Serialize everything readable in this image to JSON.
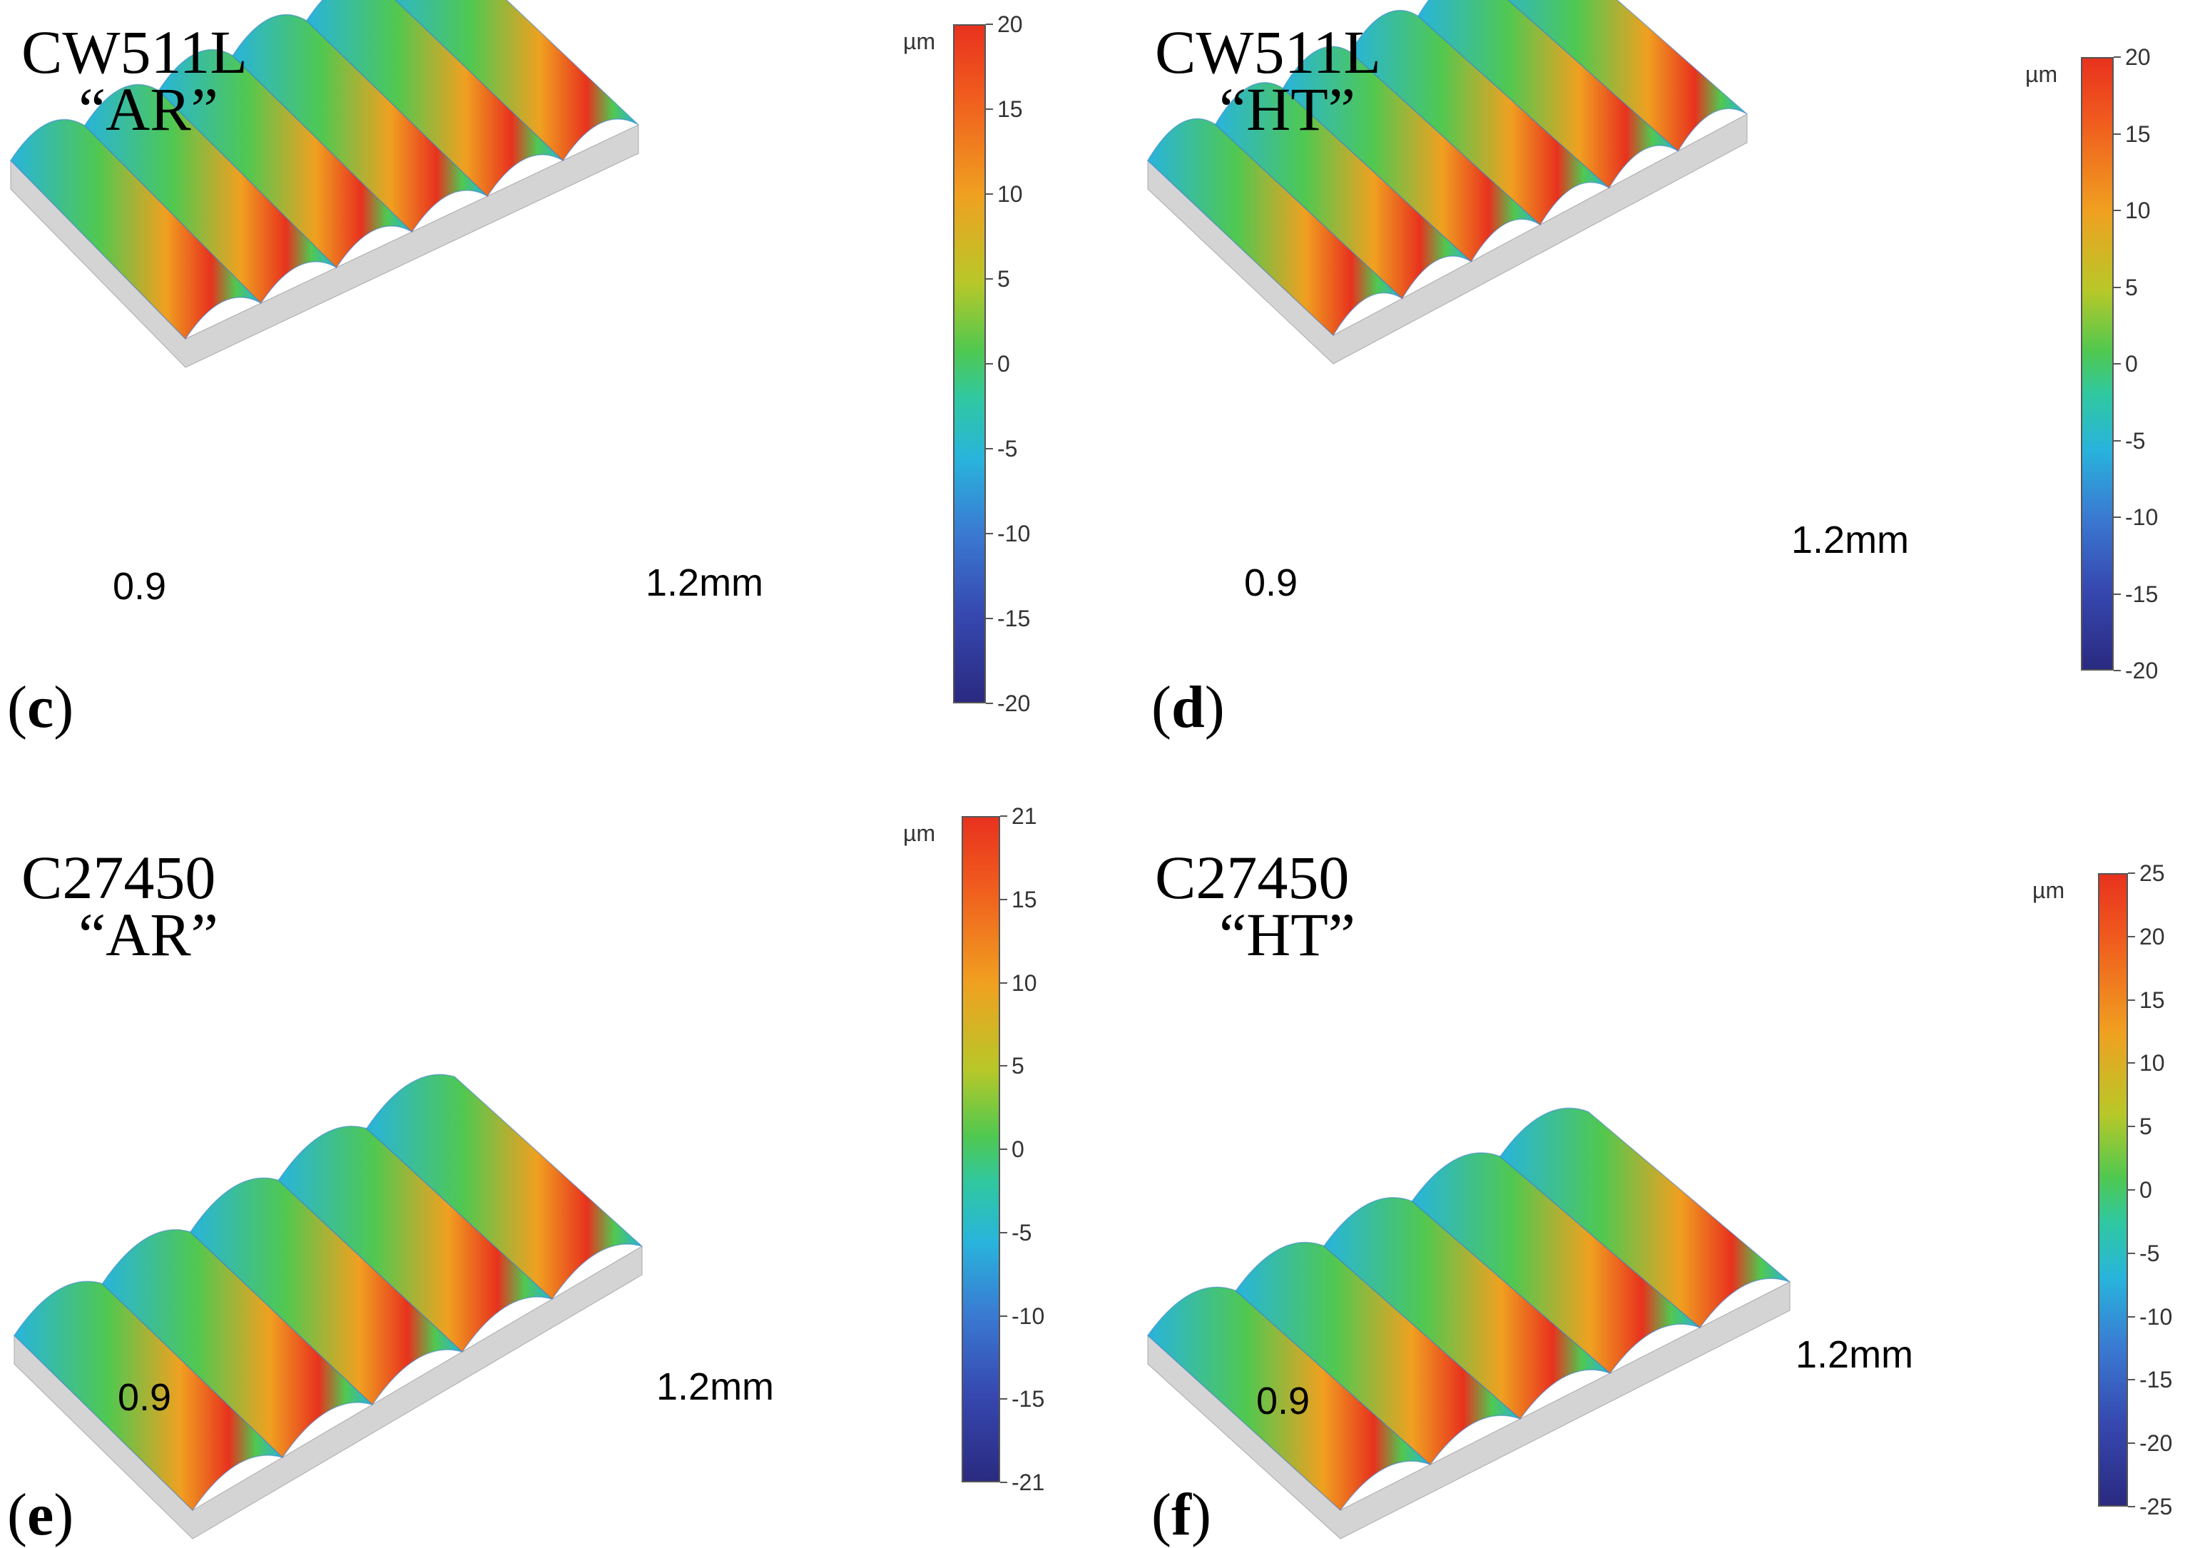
{
  "panels": [
    {
      "id": "c",
      "material": "CW511L",
      "condition": "“AR”",
      "letter": "c",
      "axis_x": "0.9",
      "axis_y": "1.2mm",
      "colorbar": {
        "unit": "µm",
        "ticks": [
          "20",
          "15",
          "10",
          "5",
          "0",
          "-5",
          "-10",
          "-15",
          "-20"
        ]
      }
    },
    {
      "id": "d",
      "material": "CW511L",
      "condition": "“HT”",
      "letter": "d",
      "axis_x": "0.9",
      "axis_y": "1.2mm",
      "colorbar": {
        "unit": "µm",
        "ticks": [
          "20",
          "15",
          "10",
          "5",
          "0",
          "-5",
          "-10",
          "-15",
          "-20"
        ]
      }
    },
    {
      "id": "e",
      "material": "C27450",
      "condition": "“AR”",
      "letter": "e",
      "axis_x": "0.9",
      "axis_y": "1.2mm",
      "colorbar": {
        "unit": "µm",
        "ticks": [
          "21",
          "15",
          "10",
          "5",
          "0",
          "-5",
          "-10",
          "-15",
          "-21"
        ]
      }
    },
    {
      "id": "f",
      "material": "C27450",
      "condition": "“HT”",
      "letter": "f",
      "axis_x": "0.9",
      "axis_y": "1.2mm",
      "colorbar": {
        "unit": "µm",
        "ticks": [
          "25",
          "20",
          "15",
          "10",
          "5",
          "0",
          "-5",
          "-10",
          "-15",
          "-20",
          "-25"
        ]
      }
    }
  ],
  "colors": {
    "high": "#e8321e",
    "mid_high": "#f0a020",
    "mid": "#50c850",
    "mid_low": "#28b4dc",
    "low": "#2a2a80",
    "base": "#d4d4d4"
  }
}
